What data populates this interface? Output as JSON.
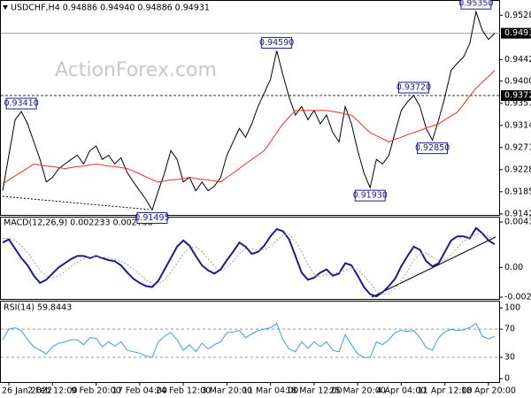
{
  "chart_data": [
    {
      "type": "line",
      "title": "USDCHF,H4  0.94886 0.94940 0.94886 0.94931",
      "watermark": "ActionForex.com",
      "ylim": [
        0.914,
        0.9556
      ],
      "yticks": [
        {
          "value": 0.9528,
          "label": "0.95280"
        },
        {
          "value": 0.9442,
          "label": "0.94420"
        },
        {
          "value": 0.94,
          "label": "0.94000"
        },
        {
          "value": 0.9357,
          "label": "0.93570"
        },
        {
          "value": 0.9314,
          "label": "0.93140"
        },
        {
          "value": 0.9271,
          "label": "0.92710"
        },
        {
          "value": 0.9228,
          "label": "0.92280"
        },
        {
          "value": 0.9185,
          "label": "0.91850"
        },
        {
          "value": 0.9142,
          "label": "0.91420"
        }
      ],
      "hlines": [
        {
          "value": 0.94931,
          "label": "0.94931",
          "style": "solid",
          "color": "#a0a0a0"
        },
        {
          "value": 0.9372,
          "label": "0.93720",
          "style": "dashed",
          "color": "#333333"
        }
      ],
      "series": [
        {
          "name": "USDCHF",
          "color": "#000000",
          "values": [
            0.9187,
            0.9256,
            0.9325,
            0.9341,
            0.9317,
            0.9282,
            0.9248,
            0.9204,
            0.9213,
            0.923,
            0.9239,
            0.9248,
            0.9256,
            0.9239,
            0.9265,
            0.9274,
            0.9248,
            0.9256,
            0.9239,
            0.9251,
            0.9222,
            0.9204,
            0.9187,
            0.917,
            0.91495,
            0.9187,
            0.9222,
            0.9265,
            0.9248,
            0.9204,
            0.9213,
            0.9187,
            0.9204,
            0.9187,
            0.9196,
            0.9213,
            0.9256,
            0.9282,
            0.9308,
            0.9291,
            0.9317,
            0.9351,
            0.9377,
            0.9403,
            0.9459,
            0.9412,
            0.9369,
            0.9334,
            0.9351,
            0.9325,
            0.9343,
            0.9317,
            0.9334,
            0.93,
            0.9282,
            0.9351,
            0.9317,
            0.9265,
            0.9222,
            0.9193,
            0.9248,
            0.9239,
            0.9256,
            0.93,
            0.9343,
            0.936,
            0.9372,
            0.9351,
            0.9308,
            0.9285,
            0.9325,
            0.9369,
            0.9421,
            0.9435,
            0.9447,
            0.9473,
            0.9535,
            0.9499,
            0.9481,
            0.94931
          ],
          "value_labels": [
            null,
            null,
            null,
            "0.93410",
            null,
            null,
            null,
            null,
            null,
            null,
            null,
            null,
            null,
            null,
            null,
            null,
            null,
            null,
            null,
            null,
            null,
            null,
            null,
            null,
            "0.91495",
            null,
            null,
            null,
            null,
            null,
            null,
            null,
            null,
            null,
            null,
            null,
            null,
            null,
            null,
            null,
            null,
            null,
            null,
            null,
            "0.94590",
            null,
            null,
            null,
            null,
            null,
            null,
            null,
            null,
            null,
            null,
            null,
            null,
            null,
            null,
            "0.91930",
            null,
            null,
            null,
            null,
            null,
            null,
            "0.93720",
            null,
            null,
            "0.92850",
            null,
            null,
            null,
            null,
            null,
            null,
            "0.95350",
            null,
            null,
            null
          ]
        },
        {
          "name": "MA",
          "color": "#e8312a",
          "values": [
            0.92,
            0.9208,
            0.9216,
            0.9223,
            0.9231,
            0.9239,
            0.9237,
            0.9235,
            0.9234,
            0.9232,
            0.923,
            0.9232,
            0.9234,
            0.9235,
            0.9237,
            0.9239,
            0.9237,
            0.9235,
            0.9234,
            0.9232,
            0.923,
            0.9225,
            0.922,
            0.9214,
            0.9209,
            0.9204,
            0.9206,
            0.9208,
            0.9209,
            0.9211,
            0.9213,
            0.9211,
            0.9209,
            0.9208,
            0.9206,
            0.9204,
            0.9213,
            0.9221,
            0.923,
            0.9239,
            0.9248,
            0.9256,
            0.9265,
            0.9282,
            0.93,
            0.9317,
            0.933,
            0.9343,
            0.9343,
            0.9343,
            0.9343,
            0.9343,
            0.9343,
            0.9341,
            0.9339,
            0.9336,
            0.9334,
            0.9323,
            0.9311,
            0.93,
            0.9294,
            0.9288,
            0.9282,
            0.9287,
            0.9291,
            0.9296,
            0.93,
            0.9304,
            0.9309,
            0.9313,
            0.9317,
            0.9325,
            0.9332,
            0.934,
            0.9355,
            0.9371,
            0.9386,
            0.9398,
            0.9409,
            0.9421
          ]
        }
      ]
    },
    {
      "type": "line",
      "title": "MACD(12,26,9) 0.002233 0.002758",
      "ylim": [
        -0.00305,
        0.00481
      ],
      "yticks": [
        0.004381,
        {
          "value": 0,
          "label": "0.00"
        },
        -0.002881
      ],
      "series": [
        {
          "name": "MACD",
          "color": "#1c1c8a",
          "line_style": "solid",
          "values": [
            0.0024,
            0.0027,
            0.0018,
            0.0009,
            0.0002,
            -0.0008,
            -0.0015,
            -0.0012,
            -0.0006,
            0,
            0.0004,
            0.0008,
            0.0011,
            0.0011,
            0.0009,
            0.0011,
            0.0009,
            0.0007,
            0.0006,
            0.0002,
            -0.0005,
            -0.0011,
            -0.0015,
            -0.0018,
            -0.0019,
            -0.0013,
            -0.0002,
            0.0009,
            0.002,
            0.0026,
            0.0021,
            0.0011,
            0.0002,
            -0.0003,
            -0.0006,
            -0.0002,
            0.0007,
            0.0015,
            0.0024,
            0.002,
            0.0013,
            0.0015,
            0.0021,
            0.003,
            0.0037,
            0.0035,
            0.0027,
            0.0011,
            -0.0005,
            -0.0012,
            -0.001,
            -0.0005,
            -0.0002,
            -0.0008,
            -0.0006,
            0.0004,
            0.0002,
            -0.0008,
            -0.0019,
            -0.0026,
            -0.0028,
            -0.0024,
            -0.0018,
            -0.0011,
            0.0001,
            0.0011,
            0.002,
            0.0017,
            0.0006,
            0.0001,
            0.0004,
            0.0015,
            0.0026,
            0.003,
            0.003,
            0.0028,
            0.0038,
            0.0033,
            0.0026,
            0.002233
          ]
        },
        {
          "name": "Signal",
          "color": "#a0a0a0",
          "line_style": "dotted",
          "values": [
            0.0028,
            0.0028,
            0.0026,
            0.0021,
            0.0014,
            0.0006,
            -0.0003,
            -0.0008,
            -0.001,
            -0.0008,
            -0.0004,
            0.0001,
            0.0005,
            0.0008,
            0.001,
            0.001,
            0.001,
            0.0009,
            0.0008,
            0.0006,
            0.0003,
            -0.0002,
            -0.0007,
            -0.0012,
            -0.0016,
            -0.0016,
            -0.0012,
            -0.0005,
            0.0004,
            0.0013,
            0.0019,
            0.002,
            0.0015,
            0.0008,
            0.0001,
            -0.0003,
            0,
            0.0006,
            0.0013,
            0.0018,
            0.0018,
            0.0017,
            0.0017,
            0.002,
            0.0026,
            0.0031,
            0.0032,
            0.0025,
            0.0015,
            0.0003,
            -0.0007,
            -0.0009,
            -0.0007,
            -0.0006,
            -0.0005,
            -0.0003,
            -0.0001,
            -0.0002,
            -0.0008,
            -0.0015,
            -0.0023,
            -0.0026,
            -0.0025,
            -0.002,
            -0.0013,
            -0.0004,
            0.0007,
            0.0013,
            0.0014,
            0.001,
            0.0007,
            0.0007,
            0.0012,
            0.0019,
            0.0025,
            0.0029,
            0.0032,
            0.0033,
            0.003,
            0.002758
          ]
        }
      ]
    },
    {
      "type": "line",
      "title": "RSI(14) 59.8443",
      "ylim": [
        -5,
        109
      ],
      "yticks": [
        100,
        70,
        30,
        0
      ],
      "dashed_levels": [
        70,
        30
      ],
      "categories": [
        null,
        "26 Jan 2022",
        null,
        null,
        null,
        null,
        null,
        null,
        "2 Feb 12:00",
        null,
        null,
        null,
        null,
        null,
        null,
        "9 Feb 20:00",
        null,
        null,
        null,
        null,
        null,
        null,
        "17 Feb 04:00",
        null,
        null,
        null,
        null,
        null,
        null,
        "24 Feb 12:00",
        null,
        null,
        null,
        null,
        null,
        null,
        "3 Mar 20:00",
        null,
        null,
        null,
        null,
        null,
        null,
        "11 Mar 04:00",
        null,
        null,
        null,
        null,
        null,
        null,
        "18 Mar 12:00",
        null,
        null,
        null,
        null,
        null,
        null,
        "25 Mar 20:00",
        null,
        null,
        null,
        null,
        null,
        null,
        "4 Apr 04:00",
        null,
        null,
        null,
        null,
        null,
        null,
        "11 Apr 12:00",
        null,
        null,
        null,
        null,
        null,
        null,
        "18 Apr 20:00",
        null
      ],
      "series": [
        {
          "name": "RSI",
          "color": "#3d9be0",
          "values": [
            55,
            70,
            72,
            68,
            55,
            45,
            40,
            35,
            45,
            50,
            52,
            55,
            55,
            48,
            58,
            57,
            45,
            52,
            46,
            52,
            40,
            38,
            36,
            32,
            30,
            52,
            60,
            65,
            55,
            40,
            48,
            38,
            50,
            42,
            48,
            52,
            65,
            66,
            68,
            58,
            63,
            68,
            70,
            72,
            78,
            55,
            42,
            38,
            52,
            43,
            52,
            45,
            52,
            40,
            38,
            62,
            48,
            35,
            30,
            30,
            52,
            48,
            55,
            65,
            68,
            67,
            68,
            58,
            44,
            40,
            58,
            66,
            70,
            68,
            69,
            72,
            78,
            60,
            56,
            59.8443
          ]
        }
      ]
    }
  ]
}
